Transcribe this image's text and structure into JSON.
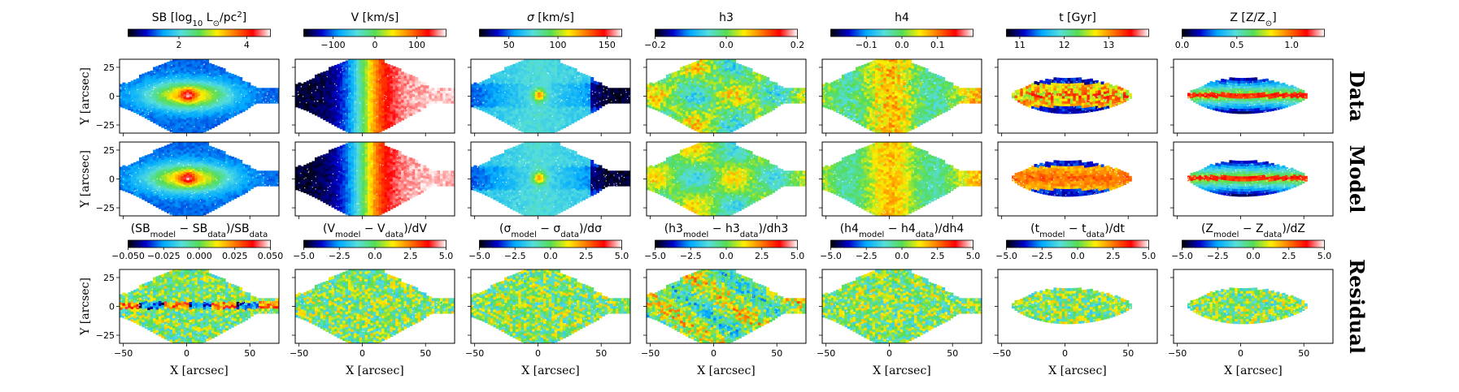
{
  "figure": {
    "row_labels": [
      "Data",
      "Model",
      "Residual"
    ],
    "axis_x_label": "X [arcsec]",
    "axis_y_label": "Y [arcsec]",
    "x_ticks": [
      -50,
      0,
      50
    ],
    "y_ticks": [
      25,
      0,
      -25
    ]
  },
  "chart_data": {
    "type": "heatmap",
    "xlim": [
      -53,
      73
    ],
    "ylim": [
      -32,
      32
    ],
    "colormap": [
      "#000000",
      "#0000cc",
      "#00aaff",
      "#55dddd",
      "#55dd55",
      "#ffee00",
      "#ff7700",
      "#ff0000",
      "#ffffff"
    ],
    "top_colorbars": [
      {
        "label_parts": [
          {
            "t": "SB [log"
          },
          {
            "t": "10",
            "sub": true
          },
          {
            "t": " L"
          },
          {
            "t": "⊙",
            "sub": true
          },
          {
            "t": "/pc"
          },
          {
            "t": "2",
            "sup": true
          },
          {
            "t": "]"
          }
        ],
        "range": [
          0.5,
          4.7
        ],
        "ticks": [
          2,
          4
        ],
        "tick_labels": [
          "2",
          "4"
        ]
      },
      {
        "label_parts": [
          {
            "t": "V [km/s]"
          }
        ],
        "range": [
          -170,
          170
        ],
        "ticks": [
          -100,
          0,
          100
        ],
        "tick_labels": [
          "−100",
          "0",
          "100"
        ]
      },
      {
        "label_parts": [
          {
            "t": "σ",
            "italic": true
          },
          {
            "t": " [km/s]"
          }
        ],
        "range": [
          20,
          165
        ],
        "ticks": [
          50,
          100,
          150
        ],
        "tick_labels": [
          "50",
          "100",
          "150"
        ]
      },
      {
        "label_parts": [
          {
            "t": "h3"
          }
        ],
        "range": [
          -0.2,
          0.2
        ],
        "ticks": [
          -0.2,
          0.0,
          0.2
        ],
        "tick_labels": [
          "−0.2",
          "0.0",
          "0.2"
        ]
      },
      {
        "label_parts": [
          {
            "t": "h4"
          }
        ],
        "range": [
          -0.2,
          0.2
        ],
        "ticks": [
          -0.1,
          0.0,
          0.1
        ],
        "tick_labels": [
          "−0.1",
          "0.0",
          "0.1"
        ]
      },
      {
        "label_parts": [
          {
            "t": "t [Gyr]"
          }
        ],
        "range": [
          10.7,
          13.9
        ],
        "ticks": [
          11,
          12,
          13
        ],
        "tick_labels": [
          "11",
          "12",
          "13"
        ]
      },
      {
        "label_parts": [
          {
            "t": "Z [Z/Z"
          },
          {
            "t": "⊙",
            "sub": true
          },
          {
            "t": "]"
          }
        ],
        "range": [
          0.0,
          1.3
        ],
        "ticks": [
          0.0,
          0.5,
          1.0
        ],
        "tick_labels": [
          "0.0",
          "0.5",
          "1.0"
        ]
      }
    ],
    "residual_colorbars": [
      {
        "label_parts": [
          {
            "t": "(SB"
          },
          {
            "t": "model",
            "sub": true
          },
          {
            "t": " − SB"
          },
          {
            "t": "data",
            "sub": true
          },
          {
            "t": ")/SB"
          },
          {
            "t": "data",
            "sub": true
          }
        ],
        "range": [
          -0.05,
          0.05
        ],
        "ticks": [
          -0.05,
          -0.025,
          0.0,
          0.025,
          0.05
        ],
        "tick_labels": [
          "−0.050",
          "−0.025",
          "0.000",
          "0.025",
          "0.050"
        ]
      },
      {
        "label_parts": [
          {
            "t": "(V"
          },
          {
            "t": "model",
            "sub": true
          },
          {
            "t": " − V"
          },
          {
            "t": "data",
            "sub": true
          },
          {
            "t": ")/dV"
          }
        ],
        "range": [
          -5,
          5
        ],
        "ticks": [
          -5,
          -2.5,
          0,
          2.5,
          5
        ],
        "tick_labels": [
          "−5.0",
          "−2.5",
          "0.0",
          "2.5",
          "5.0"
        ]
      },
      {
        "label_parts": [
          {
            "t": "(σ"
          },
          {
            "t": "model",
            "sub": true
          },
          {
            "t": " − σ"
          },
          {
            "t": "data",
            "sub": true
          },
          {
            "t": ")/dσ"
          }
        ],
        "range": [
          -5,
          5
        ],
        "ticks": [
          -5,
          -2.5,
          0,
          2.5,
          5
        ],
        "tick_labels": [
          "−5.0",
          "−2.5",
          "0.0",
          "2.5",
          "5.0"
        ]
      },
      {
        "label_parts": [
          {
            "t": "(h3"
          },
          {
            "t": "model",
            "sub": true
          },
          {
            "t": " − h3"
          },
          {
            "t": "data",
            "sub": true
          },
          {
            "t": ")/dh3"
          }
        ],
        "range": [
          -5,
          5
        ],
        "ticks": [
          -5,
          -2.5,
          0,
          2.5,
          5
        ],
        "tick_labels": [
          "−5.0",
          "−2.5",
          "0.0",
          "2.5",
          "5.0"
        ]
      },
      {
        "label_parts": [
          {
            "t": "(h4"
          },
          {
            "t": "model",
            "sub": true
          },
          {
            "t": " − h4"
          },
          {
            "t": "data",
            "sub": true
          },
          {
            "t": ")/dh4"
          }
        ],
        "range": [
          -5,
          5
        ],
        "ticks": [
          -5,
          -2.5,
          0,
          2.5,
          5
        ],
        "tick_labels": [
          "−5.0",
          "−2.5",
          "0.0",
          "2.5",
          "5.0"
        ]
      },
      {
        "label_parts": [
          {
            "t": "(t"
          },
          {
            "t": "model",
            "sub": true
          },
          {
            "t": " − t"
          },
          {
            "t": "data",
            "sub": true
          },
          {
            "t": ")/dt"
          }
        ],
        "range": [
          -5,
          5
        ],
        "ticks": [
          -5,
          -2.5,
          0,
          2.5,
          5
        ],
        "tick_labels": [
          "−5.0",
          "−2.5",
          "0.0",
          "2.5",
          "5.0"
        ]
      },
      {
        "label_parts": [
          {
            "t": "(Z"
          },
          {
            "t": "model",
            "sub": true
          },
          {
            "t": " − Z"
          },
          {
            "t": "data",
            "sub": true
          },
          {
            "t": ")/dZ"
          }
        ],
        "range": [
          -5,
          5
        ],
        "ticks": [
          -5,
          -2.5,
          0,
          2.5,
          5
        ],
        "tick_labels": [
          "−5.0",
          "−2.5",
          "0.0",
          "2.5",
          "5.0"
        ]
      }
    ]
  }
}
